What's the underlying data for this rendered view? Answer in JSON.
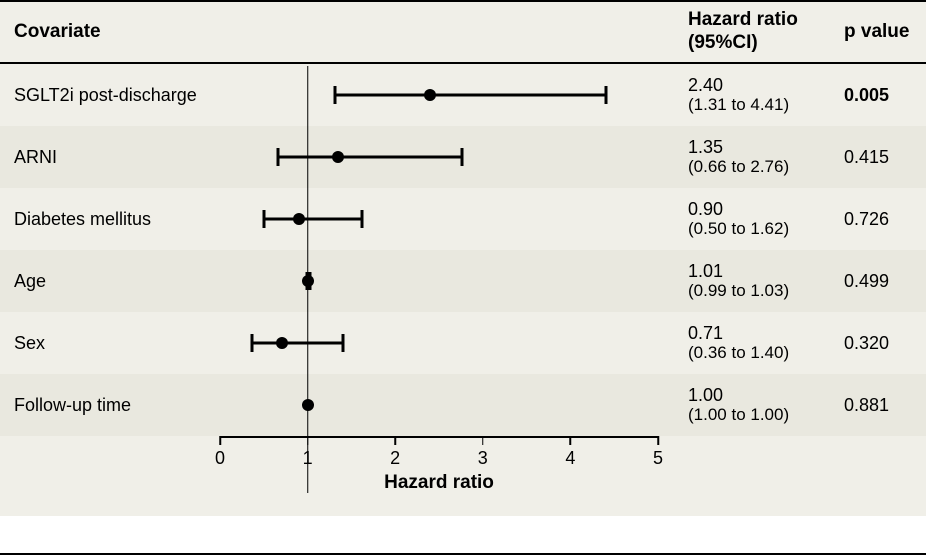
{
  "forest": {
    "headers": {
      "covariate": "Covariate",
      "hr": "Hazard ratio\n(95%CI)",
      "p": "p value"
    },
    "x_axis": {
      "min": 0,
      "max": 5,
      "ticks": [
        0,
        1,
        2,
        3,
        4,
        5
      ],
      "title": "Hazard ratio",
      "ref_line": 1
    },
    "rows": [
      {
        "label": "SGLT2i post-discharge",
        "hr": 2.4,
        "lo": 1.31,
        "hi": 4.41,
        "hr_text": "2.40",
        "ci_text": "(1.31 to 4.41)",
        "p": "0.005",
        "p_bold": true
      },
      {
        "label": "ARNI",
        "hr": 1.35,
        "lo": 0.66,
        "hi": 2.76,
        "hr_text": "1.35",
        "ci_text": "(0.66 to 2.76)",
        "p": "0.415",
        "p_bold": false
      },
      {
        "label": "Diabetes mellitus",
        "hr": 0.9,
        "lo": 0.5,
        "hi": 1.62,
        "hr_text": "0.90",
        "ci_text": "(0.50 to 1.62)",
        "p": "0.726",
        "p_bold": false
      },
      {
        "label": "Age",
        "hr": 1.01,
        "lo": 0.99,
        "hi": 1.03,
        "hr_text": "1.01",
        "ci_text": "(0.99 to 1.03)",
        "p": "0.499",
        "p_bold": false
      },
      {
        "label": "Sex",
        "hr": 0.71,
        "lo": 0.36,
        "hi": 1.4,
        "hr_text": "0.71",
        "ci_text": "(0.36 to 1.40)",
        "p": "0.320",
        "p_bold": false
      },
      {
        "label": "Follow-up time",
        "hr": 1.0,
        "lo": 1.0,
        "hi": 1.0,
        "hr_text": "1.00",
        "ci_text": "(1.00 to 1.00)",
        "p": "0.881",
        "p_bold": false
      }
    ],
    "style": {
      "row_bg_even": "#f0efe8",
      "row_bg_odd": "#e9e8df",
      "dot_size": 12,
      "cap_height": 18,
      "line_width": 3,
      "font_family": "Arial"
    }
  }
}
